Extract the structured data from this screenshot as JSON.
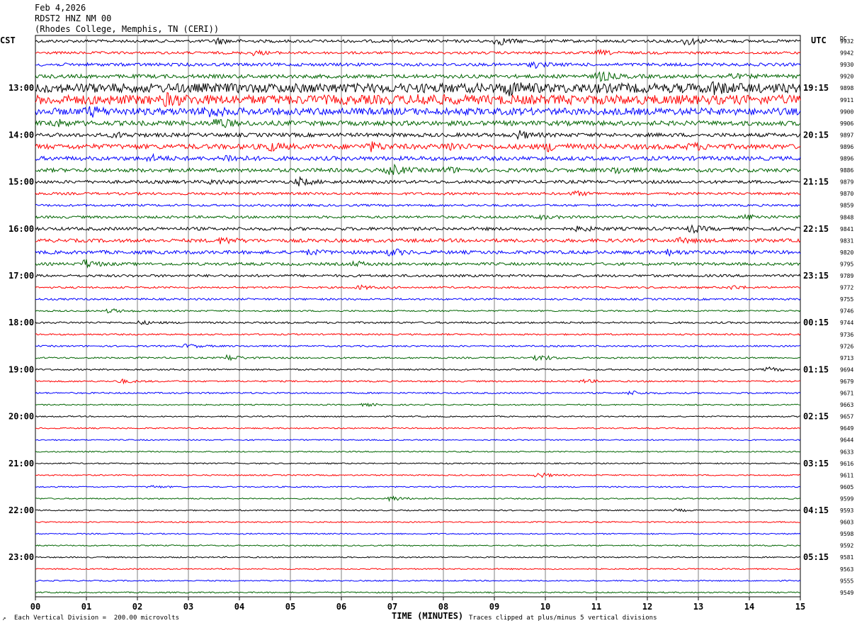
{
  "header": {
    "date": "Feb 4,2026",
    "station": "RDST2 HNZ NM 00",
    "location": "(Rhodes College, Memphis, TN (CERI))"
  },
  "left_axis_title": "CST",
  "right_axis_title": "UTC",
  "dc_title": "DC",
  "footer": {
    "scale_note": "Each Vertical Division =  200.00 microvolts",
    "clip_note": "Traces clipped at plus/minus 5 vertical divisions",
    "corner_mark": "↗"
  },
  "colors": {
    "black": "#000000",
    "red": "#ff0000",
    "blue": "#0000ff",
    "green": "#006400",
    "grid": "#808080"
  },
  "chart_data": {
    "type": "line",
    "title": "",
    "xlabel": "TIME (MINUTES)",
    "xlim": [
      0,
      15
    ],
    "x_ticks": [
      "00",
      "01",
      "02",
      "03",
      "04",
      "05",
      "06",
      "07",
      "08",
      "09",
      "10",
      "11",
      "12",
      "13",
      "14",
      "15"
    ],
    "trace_colors": [
      "black",
      "red",
      "blue",
      "green"
    ],
    "left_hour_labels": [
      "13:00",
      "14:00",
      "15:00",
      "16:00",
      "17:00",
      "18:00",
      "19:00",
      "20:00",
      "21:00",
      "22:00",
      "23:00"
    ],
    "right_hour_labels": [
      "19:15",
      "20:15",
      "21:15",
      "22:15",
      "23:15",
      "00:15",
      "01:15",
      "02:15",
      "03:15",
      "04:15",
      "05:15"
    ],
    "dc_offsets": [
      9932,
      9942,
      9930,
      9920,
      9898,
      9911,
      9900,
      9906,
      9897,
      9896,
      9896,
      9886,
      9879,
      9870,
      9859,
      9848,
      9841,
      9831,
      9820,
      9795,
      9789,
      9772,
      9755,
      9746,
      9744,
      9736,
      9726,
      9713,
      9694,
      9679,
      9671,
      9663,
      9657,
      9649,
      9644,
      9633,
      9616,
      9611,
      9605,
      9599,
      9593,
      9603,
      9598,
      9592,
      9581,
      9563,
      9555,
      9549
    ],
    "trace_noise_level": [
      0.9,
      0.8,
      1.0,
      1.2,
      3.0,
      3.0,
      2.2,
      1.5,
      1.2,
      1.6,
      1.3,
      1.2,
      1.0,
      0.8,
      0.7,
      0.8,
      1.0,
      1.1,
      1.1,
      0.9,
      0.8,
      0.6,
      0.6,
      0.5,
      0.6,
      0.5,
      0.5,
      0.5,
      0.5,
      0.5,
      0.5,
      0.4,
      0.4,
      0.4,
      0.4,
      0.4,
      0.4,
      0.4,
      0.4,
      0.4,
      0.4,
      0.4,
      0.4,
      0.4,
      0.4,
      0.4,
      0.4,
      0.4
    ],
    "events": [
      {
        "trace": 0,
        "minute": 3.5,
        "amp": 2.5
      },
      {
        "trace": 0,
        "minute": 9.0,
        "amp": 3.5
      },
      {
        "trace": 0,
        "minute": 12.7,
        "amp": 3.5
      },
      {
        "trace": 1,
        "minute": 4.2,
        "amp": 2.0
      },
      {
        "trace": 1,
        "minute": 11.0,
        "amp": 2.0
      },
      {
        "trace": 2,
        "minute": 9.7,
        "amp": 2.5
      },
      {
        "trace": 3,
        "minute": 11.0,
        "amp": 4.5
      },
      {
        "trace": 3,
        "minute": 13.5,
        "amp": 2.5
      },
      {
        "trace": 4,
        "minute": 9.2,
        "amp": 4.5
      },
      {
        "trace": 4,
        "minute": 13.2,
        "amp": 4.0
      },
      {
        "trace": 5,
        "minute": 2.5,
        "amp": 3.5
      },
      {
        "trace": 5,
        "minute": 7.5,
        "amp": 3.5
      },
      {
        "trace": 6,
        "minute": 1.0,
        "amp": 3.5
      },
      {
        "trace": 6,
        "minute": 3.3,
        "amp": 4.5
      },
      {
        "trace": 7,
        "minute": 0.3,
        "amp": 3.0
      },
      {
        "trace": 7,
        "minute": 3.5,
        "amp": 4.5
      },
      {
        "trace": 8,
        "minute": 9.4,
        "amp": 3.5
      },
      {
        "trace": 8,
        "minute": 1.5,
        "amp": 2.0
      },
      {
        "trace": 9,
        "minute": 4.5,
        "amp": 3.5
      },
      {
        "trace": 9,
        "minute": 6.5,
        "amp": 3.5
      },
      {
        "trace": 9,
        "minute": 8.0,
        "amp": 3.5
      },
      {
        "trace": 9,
        "minute": 10.0,
        "amp": 3.5
      },
      {
        "trace": 9,
        "minute": 12.8,
        "amp": 2.5
      },
      {
        "trace": 10,
        "minute": 2.2,
        "amp": 2.5
      },
      {
        "trace": 10,
        "minute": 3.7,
        "amp": 3.0
      },
      {
        "trace": 11,
        "minute": 6.9,
        "amp": 5.0
      },
      {
        "trace": 11,
        "minute": 8.0,
        "amp": 2.5
      },
      {
        "trace": 11,
        "minute": 11.3,
        "amp": 3.0
      },
      {
        "trace": 12,
        "minute": 5.1,
        "amp": 3.5
      },
      {
        "trace": 12,
        "minute": 3.4,
        "amp": 1.8
      },
      {
        "trace": 13,
        "minute": 10.5,
        "amp": 2.0
      },
      {
        "trace": 15,
        "minute": 9.8,
        "amp": 1.8
      },
      {
        "trace": 15,
        "minute": 13.9,
        "amp": 2.5
      },
      {
        "trace": 16,
        "minute": 10.6,
        "amp": 2.0
      },
      {
        "trace": 16,
        "minute": 12.8,
        "amp": 3.0
      },
      {
        "trace": 17,
        "minute": 3.6,
        "amp": 3.0
      },
      {
        "trace": 17,
        "minute": 12.6,
        "amp": 2.0
      },
      {
        "trace": 18,
        "minute": 6.9,
        "amp": 3.0
      },
      {
        "trace": 18,
        "minute": 5.3,
        "amp": 2.0
      },
      {
        "trace": 18,
        "minute": 12.3,
        "amp": 2.5
      },
      {
        "trace": 19,
        "minute": 0.9,
        "amp": 4.0
      },
      {
        "trace": 19,
        "minute": 6.2,
        "amp": 2.0
      },
      {
        "trace": 21,
        "minute": 6.3,
        "amp": 1.8
      },
      {
        "trace": 21,
        "minute": 13.6,
        "amp": 1.8
      },
      {
        "trace": 23,
        "minute": 1.4,
        "amp": 2.0
      },
      {
        "trace": 24,
        "minute": 2.0,
        "amp": 1.5
      },
      {
        "trace": 26,
        "minute": 2.9,
        "amp": 2.0
      },
      {
        "trace": 27,
        "minute": 3.7,
        "amp": 2.8
      },
      {
        "trace": 27,
        "minute": 9.8,
        "amp": 3.0
      },
      {
        "trace": 28,
        "minute": 14.3,
        "amp": 2.0
      },
      {
        "trace": 29,
        "minute": 1.6,
        "amp": 1.8
      },
      {
        "trace": 29,
        "minute": 10.7,
        "amp": 1.5
      },
      {
        "trace": 30,
        "minute": 11.6,
        "amp": 2.0
      },
      {
        "trace": 31,
        "minute": 6.4,
        "amp": 1.3
      },
      {
        "trace": 37,
        "minute": 9.8,
        "amp": 2.5
      },
      {
        "trace": 38,
        "minute": 2.2,
        "amp": 1.2
      },
      {
        "trace": 39,
        "minute": 6.9,
        "amp": 2.5
      },
      {
        "trace": 40,
        "minute": 12.5,
        "amp": 1.0
      }
    ]
  }
}
